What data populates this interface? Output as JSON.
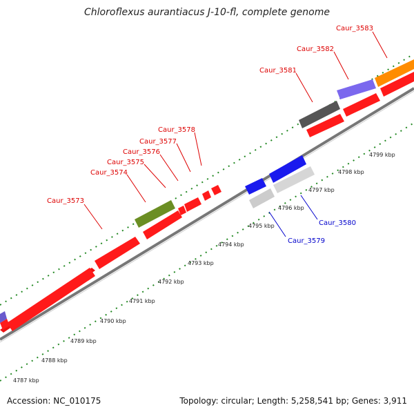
{
  "title": "Chloroflexus aurantiacus J-10-fl, complete genome",
  "accession": "Accession: NC_010175",
  "summary": "Topology: circular; Length: 5,258,541 bp; Genes: 3,911",
  "colors": {
    "forward_label": "#dd0000",
    "reverse_label": "#0000cc",
    "backbone": "#999999",
    "tick": "#228822"
  },
  "kbp_labels": [
    "4787 kbp",
    "4788 kbp",
    "4789 kbp",
    "4790 kbp",
    "4791 kbp",
    "4792 kbp",
    "4793 kbp",
    "4794 kbp",
    "4795 kbp",
    "4796 kbp",
    "4797 kbp",
    "4798 kbp",
    "4799 kbp"
  ],
  "genes_upper": [
    {
      "name": "Caur_3573",
      "color": "#dd0000"
    },
    {
      "name": "Caur_3574",
      "color": "#dd0000"
    },
    {
      "name": "Caur_3575",
      "color": "#dd0000"
    },
    {
      "name": "Caur_3576",
      "color": "#dd0000"
    },
    {
      "name": "Caur_3577",
      "color": "#dd0000"
    },
    {
      "name": "Caur_3578",
      "color": "#dd0000"
    },
    {
      "name": "Caur_3581",
      "color": "#dd0000"
    },
    {
      "name": "Caur_3582",
      "color": "#dd0000"
    },
    {
      "name": "Caur_3583",
      "color": "#dd0000"
    }
  ],
  "genes_lower": [
    {
      "name": "Caur_3579",
      "color": "#0000cc"
    },
    {
      "name": "Caur_3580",
      "color": "#0000cc"
    }
  ]
}
